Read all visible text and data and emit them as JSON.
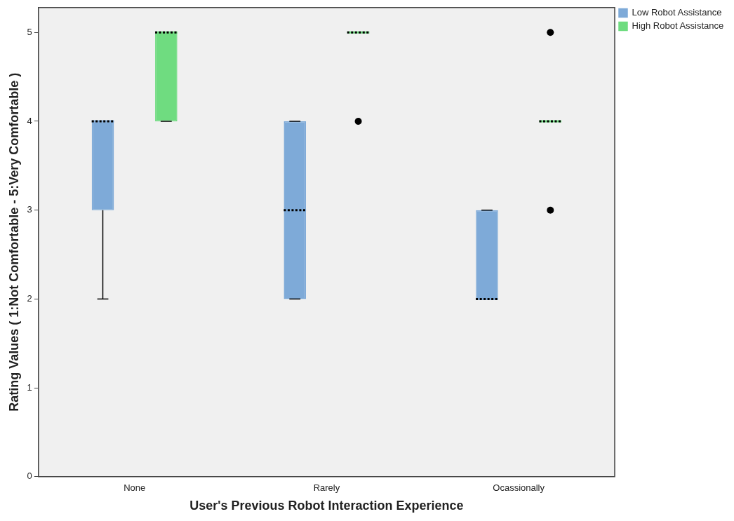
{
  "chart_data": {
    "type": "box",
    "xlabel": "User's Previous Robot Interaction Experience",
    "ylabel": "Rating Values ( 1:Not Comfortable - 5:Very Comfortable )",
    "categories": [
      "None",
      "Rarely",
      "Ocassionally"
    ],
    "series": [
      {
        "name": "Low Robot Assistance",
        "color": "#7eaad8",
        "boxes": [
          {
            "low": 2,
            "q1": 3,
            "median": 4,
            "q3": 4,
            "high": 4
          },
          {
            "low": 2,
            "q1": 2,
            "median": 3,
            "q3": 4,
            "high": 4
          },
          {
            "low": 2,
            "q1": 2,
            "median": 2,
            "q3": 3,
            "high": 3
          }
        ]
      },
      {
        "name": "High Robot Assistance",
        "color": "#6fdc80",
        "boxes": [
          {
            "low": 4,
            "q1": 4,
            "median": 5,
            "q3": 5,
            "high": 5
          },
          {
            "low": 5,
            "q1": 5,
            "median": 5,
            "q3": 5,
            "high": 5,
            "outliers": [
              4
            ]
          },
          {
            "low": 4,
            "q1": 4,
            "median": 4,
            "q3": 4,
            "high": 4,
            "outliers": [
              3,
              5
            ]
          }
        ]
      }
    ],
    "ylim": [
      0,
      5.28
    ],
    "yticks": [
      0,
      1,
      2,
      3,
      4,
      5
    ],
    "grid": false,
    "legend": "top right"
  }
}
